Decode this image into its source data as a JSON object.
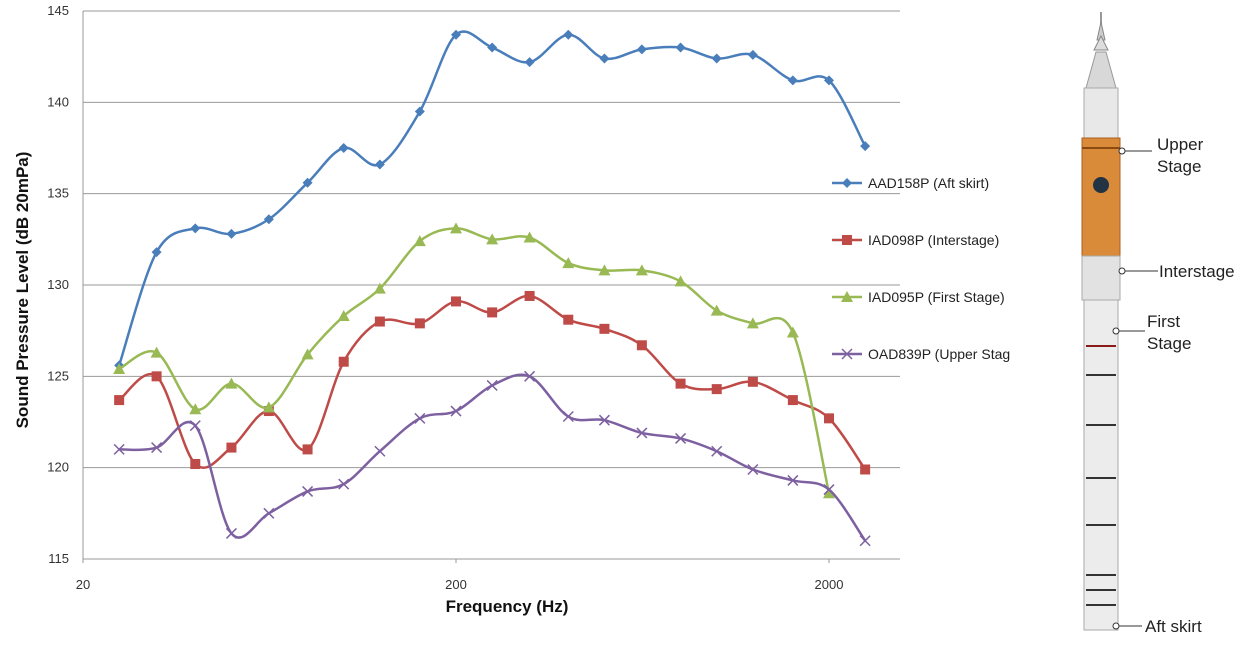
{
  "chart_data": {
    "type": "line",
    "x_label": "Frequency (Hz)",
    "y_label": "Sound Pressure Level (dB 20mPa)",
    "x": [
      25,
      31.5,
      40,
      50,
      63,
      80,
      100,
      125,
      160,
      200,
      250,
      315,
      400,
      500,
      630,
      800,
      1000,
      1250,
      1600,
      2000,
      2500
    ],
    "xscale": "log",
    "xlim": [
      20,
      3100
    ],
    "xticks": [
      20,
      200,
      2000
    ],
    "ylim": [
      115,
      145
    ],
    "yticks": [
      115,
      120,
      125,
      130,
      135,
      140,
      145
    ],
    "grid": true,
    "legend": "right",
    "series": [
      {
        "name": "AAD158P (Aft skirt)",
        "color": "#4a7ebb",
        "marker": "diamond",
        "values": [
          125.6,
          131.8,
          133.1,
          132.8,
          133.6,
          135.6,
          137.5,
          136.6,
          139.5,
          143.7,
          143.0,
          142.2,
          143.7,
          142.4,
          142.9,
          143.0,
          142.4,
          142.6,
          141.2,
          141.2,
          137.6
        ]
      },
      {
        "name": "IAD098P (Interstage)",
        "color": "#be4b48",
        "marker": "square",
        "values": [
          123.7,
          125.0,
          120.2,
          121.1,
          123.1,
          121.0,
          125.8,
          128.0,
          127.9,
          129.1,
          128.5,
          129.4,
          128.1,
          127.6,
          126.7,
          124.6,
          124.3,
          124.7,
          123.7,
          122.7,
          119.9
        ]
      },
      {
        "name": "IAD095P (First Stage)",
        "color": "#98b954",
        "marker": "triangle",
        "values": [
          125.4,
          126.3,
          123.2,
          124.6,
          123.3,
          126.2,
          128.3,
          129.8,
          132.4,
          133.1,
          132.5,
          132.6,
          131.2,
          130.8,
          130.8,
          130.2,
          128.6,
          127.9,
          127.4,
          118.6,
          null
        ]
      },
      {
        "name": "OAD839P (Upper Stag",
        "color": "#7d60a0",
        "marker": "x",
        "values": [
          121.0,
          121.1,
          122.3,
          116.4,
          117.5,
          118.7,
          119.1,
          120.9,
          122.7,
          123.1,
          124.5,
          125.0,
          122.8,
          122.6,
          121.9,
          121.6,
          120.9,
          119.9,
          119.3,
          118.8,
          116.0
        ]
      }
    ],
    "annotations": [
      {
        "text": [
          "Upper",
          "Stage"
        ]
      },
      {
        "text": [
          "Interstage"
        ]
      },
      {
        "text": [
          "First",
          "Stage"
        ]
      },
      {
        "text": [
          "Aft skirt"
        ]
      }
    ]
  }
}
